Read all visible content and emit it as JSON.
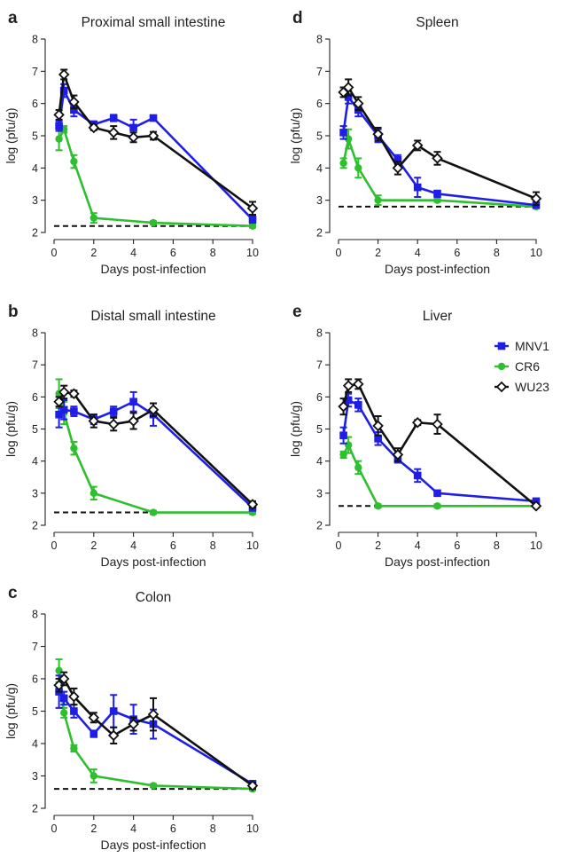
{
  "legend": [
    {
      "name": "MNV1",
      "color": "#1e1ee6",
      "marker": "square"
    },
    {
      "name": "CR6",
      "color": "#2ebf2e",
      "marker": "circle"
    },
    {
      "name": "WU23",
      "color": "#111111",
      "marker": "diamond-open"
    }
  ],
  "chart_data": [
    {
      "panel": "a",
      "type": "line",
      "title": "Proximal small intestine",
      "xlabel": "Days post-infection",
      "ylabel": "log (pfu/g)",
      "xlim": [
        0,
        10
      ],
      "ylim": [
        2,
        8
      ],
      "xticks": [
        "0",
        "2",
        "4",
        "6",
        "8",
        "10"
      ],
      "yticks": [
        "2",
        "3",
        "4",
        "5",
        "6",
        "7",
        "8"
      ],
      "limit_of_detection": 2.2,
      "series": [
        {
          "name": "MNV1",
          "x": [
            0.25,
            0.5,
            1,
            2,
            3,
            4,
            5,
            10
          ],
          "y": [
            5.3,
            6.4,
            5.8,
            5.35,
            5.55,
            5.25,
            5.55,
            2.4
          ],
          "err": [
            0.15,
            0.2,
            0.2,
            0.1,
            0.1,
            0.25,
            0.08,
            0.1
          ]
        },
        {
          "name": "CR6",
          "x": [
            0.25,
            0.5,
            1,
            2,
            5,
            10
          ],
          "y": [
            4.9,
            5.2,
            4.2,
            2.45,
            2.3,
            2.2
          ],
          "err": [
            0.35,
            0.1,
            0.2,
            0.15,
            0.05,
            0.05
          ]
        },
        {
          "name": "WU23",
          "x": [
            0.25,
            0.5,
            1,
            2,
            3,
            4,
            5,
            10
          ],
          "y": [
            5.65,
            6.9,
            6.05,
            5.25,
            5.1,
            4.95,
            5.0,
            2.75
          ],
          "err": [
            0.15,
            0.15,
            0.2,
            0.08,
            0.2,
            0.15,
            0.12,
            0.2
          ]
        }
      ]
    },
    {
      "panel": "b",
      "type": "line",
      "title": "Distal small intestine",
      "xlabel": "Days post-infection",
      "ylabel": "log (pfu/g)",
      "xlim": [
        0,
        10
      ],
      "ylim": [
        2,
        8
      ],
      "xticks": [
        "0",
        "2",
        "4",
        "6",
        "8",
        "10"
      ],
      "yticks": [
        "2",
        "3",
        "4",
        "5",
        "6",
        "7",
        "8"
      ],
      "limit_of_detection": 2.4,
      "series": [
        {
          "name": "MNV1",
          "x": [
            0.25,
            0.5,
            1,
            2,
            3,
            4,
            5,
            10
          ],
          "y": [
            5.45,
            5.6,
            5.55,
            5.3,
            5.55,
            5.85,
            5.45,
            2.55
          ],
          "err": [
            0.4,
            0.3,
            0.15,
            0.15,
            0.15,
            0.3,
            0.35,
            0.1
          ]
        },
        {
          "name": "CR6",
          "x": [
            0.25,
            0.5,
            1,
            2,
            5,
            10
          ],
          "y": [
            6.1,
            5.5,
            4.4,
            3.0,
            2.4,
            2.4
          ],
          "err": [
            0.45,
            0.35,
            0.2,
            0.2,
            0.05,
            0.05
          ]
        },
        {
          "name": "WU23",
          "x": [
            0.25,
            0.5,
            1,
            2,
            3,
            4,
            5,
            10
          ],
          "y": [
            5.85,
            6.15,
            6.1,
            5.25,
            5.15,
            5.25,
            5.6,
            2.65
          ],
          "err": [
            0.15,
            0.2,
            0.1,
            0.2,
            0.2,
            0.25,
            0.2,
            0.1
          ]
        }
      ]
    },
    {
      "panel": "c",
      "type": "line",
      "title": "Colon",
      "xlabel": "Days post-infection",
      "ylabel": "log (pfu/g)",
      "xlim": [
        0,
        10
      ],
      "ylim": [
        2,
        8
      ],
      "xticks": [
        "0",
        "2",
        "4",
        "6",
        "8",
        "10"
      ],
      "yticks": [
        "2",
        "3",
        "4",
        "5",
        "6",
        "7",
        "8"
      ],
      "limit_of_detection": 2.6,
      "series": [
        {
          "name": "MNV1",
          "x": [
            0.25,
            0.5,
            1,
            2,
            3,
            4,
            5,
            10
          ],
          "y": [
            5.6,
            5.4,
            5.0,
            4.3,
            5.0,
            4.75,
            4.6,
            2.75
          ],
          "err": [
            0.5,
            0.2,
            0.2,
            0.1,
            0.5,
            0.45,
            0.45,
            0.1
          ]
        },
        {
          "name": "CR6",
          "x": [
            0.25,
            0.5,
            1,
            2,
            5,
            10
          ],
          "y": [
            6.25,
            4.95,
            3.85,
            3.0,
            2.7,
            2.6
          ],
          "err": [
            0.35,
            0.15,
            0.1,
            0.2,
            0.05,
            0.05
          ]
        },
        {
          "name": "WU23",
          "x": [
            0.25,
            0.5,
            1,
            2,
            3,
            4,
            5,
            10
          ],
          "y": [
            5.8,
            6.0,
            5.45,
            4.8,
            4.25,
            4.6,
            4.9,
            2.7
          ],
          "err": [
            0.2,
            0.2,
            0.25,
            0.15,
            0.25,
            0.2,
            0.5,
            0.1
          ]
        }
      ]
    },
    {
      "panel": "d",
      "type": "line",
      "title": "Spleen",
      "xlabel": "Days post-infection",
      "ylabel": "log (pfu/g)",
      "xlim": [
        0,
        10
      ],
      "ylim": [
        2,
        8
      ],
      "xticks": [
        "0",
        "2",
        "4",
        "6",
        "8",
        "10"
      ],
      "yticks": [
        "2",
        "3",
        "4",
        "5",
        "6",
        "7",
        "8"
      ],
      "limit_of_detection": 2.8,
      "series": [
        {
          "name": "MNV1",
          "x": [
            0.25,
            0.5,
            1,
            2,
            3,
            4,
            5,
            10
          ],
          "y": [
            5.1,
            6.2,
            5.8,
            5.0,
            4.25,
            3.4,
            3.2,
            2.85
          ],
          "err": [
            0.2,
            0.2,
            0.2,
            0.2,
            0.15,
            0.3,
            0.1,
            0.08
          ]
        },
        {
          "name": "CR6",
          "x": [
            0.25,
            0.5,
            1,
            2,
            5,
            10
          ],
          "y": [
            4.15,
            4.9,
            4.0,
            3.0,
            3.0,
            2.8
          ],
          "err": [
            0.15,
            0.3,
            0.3,
            0.15,
            0.05,
            0.05
          ]
        },
        {
          "name": "WU23",
          "x": [
            0.25,
            0.5,
            1,
            2,
            3,
            4,
            5,
            10
          ],
          "y": [
            6.35,
            6.5,
            6.0,
            5.05,
            4.0,
            4.7,
            4.3,
            3.05
          ],
          "err": [
            0.15,
            0.25,
            0.2,
            0.2,
            0.2,
            0.15,
            0.2,
            0.2
          ]
        }
      ]
    },
    {
      "panel": "e",
      "type": "line",
      "title": "Liver",
      "xlabel": "Days post-infection",
      "ylabel": "log (pfu/g)",
      "xlim": [
        0,
        10
      ],
      "ylim": [
        2,
        8
      ],
      "xticks": [
        "0",
        "2",
        "4",
        "6",
        "8",
        "10"
      ],
      "yticks": [
        "2",
        "3",
        "4",
        "5",
        "6",
        "7",
        "8"
      ],
      "limit_of_detection": 2.6,
      "series": [
        {
          "name": "MNV1",
          "x": [
            0.25,
            0.5,
            1,
            2,
            3,
            4,
            5,
            10
          ],
          "y": [
            4.8,
            5.9,
            5.75,
            4.7,
            4.05,
            3.55,
            3.0,
            2.75
          ],
          "err": [
            0.25,
            0.2,
            0.2,
            0.2,
            0.1,
            0.2,
            0.05,
            0.05
          ]
        },
        {
          "name": "CR6",
          "x": [
            0.25,
            0.5,
            1,
            2,
            5,
            10
          ],
          "y": [
            4.2,
            4.5,
            3.8,
            2.6,
            2.6,
            2.6
          ],
          "err": [
            0.1,
            0.25,
            0.2,
            0.05,
            0.05,
            0.05
          ]
        },
        {
          "name": "WU23",
          "x": [
            0.25,
            0.5,
            1,
            2,
            3,
            4,
            5,
            10
          ],
          "y": [
            5.7,
            6.35,
            6.4,
            5.1,
            4.2,
            5.2,
            5.15,
            2.6
          ],
          "err": [
            0.25,
            0.2,
            0.15,
            0.3,
            0.2,
            0.08,
            0.3,
            0.05
          ]
        }
      ]
    }
  ]
}
